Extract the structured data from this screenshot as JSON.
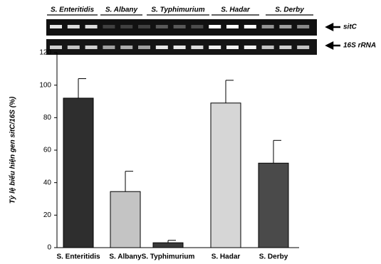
{
  "gel": {
    "groups": [
      "S. Enteritidis",
      "S. Albany",
      "S. Typhimurium",
      "S. Hadar",
      "S. Derby"
    ],
    "bands": [
      "sitC",
      "16S rRNA"
    ]
  },
  "chart_data": {
    "type": "bar",
    "y_label": "Tỷ lệ biểu hiện gen sitC/16S (%)",
    "categories": [
      "S. Enteritidis",
      "S. Albany",
      "S. Typhimurium",
      "S. Hadar",
      "S. Derby"
    ],
    "values": [
      92,
      34.5,
      3,
      89,
      52
    ],
    "errors": [
      12,
      12.5,
      1.5,
      14,
      14
    ],
    "colors": [
      "#2e2e2e",
      "#c4c4c4",
      "#3a3a3a",
      "#d6d6d6",
      "#4a4a4a"
    ],
    "ylim": [
      0,
      120
    ],
    "yticks": [
      0,
      20,
      40,
      60,
      80,
      100,
      120
    ]
  }
}
